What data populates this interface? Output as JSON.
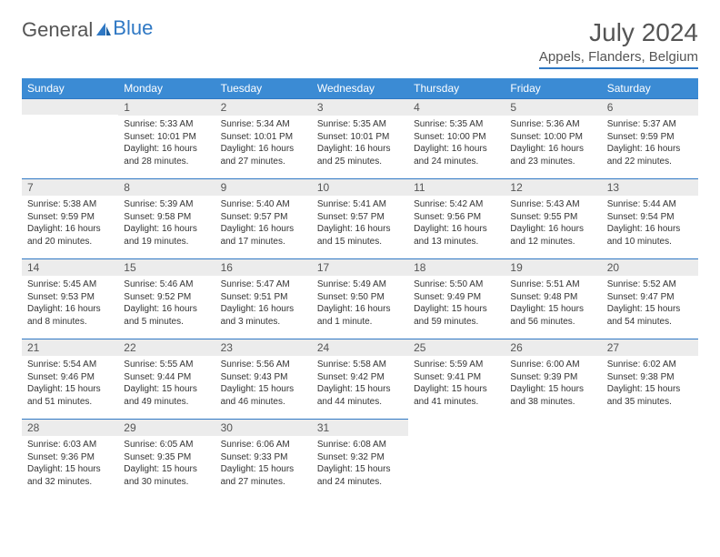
{
  "brand": {
    "part1": "General",
    "part2": "Blue"
  },
  "title": "July 2024",
  "location": "Appels, Flanders, Belgium",
  "colors": {
    "accent": "#3b8bd4",
    "rule": "#2f78c4",
    "daybg": "#ececec"
  },
  "weekdays": [
    "Sunday",
    "Monday",
    "Tuesday",
    "Wednesday",
    "Thursday",
    "Friday",
    "Saturday"
  ],
  "start_offset": 1,
  "days": [
    {
      "n": 1,
      "sr": "5:33 AM",
      "ss": "10:01 PM",
      "dl": "16 hours and 28 minutes."
    },
    {
      "n": 2,
      "sr": "5:34 AM",
      "ss": "10:01 PM",
      "dl": "16 hours and 27 minutes."
    },
    {
      "n": 3,
      "sr": "5:35 AM",
      "ss": "10:01 PM",
      "dl": "16 hours and 25 minutes."
    },
    {
      "n": 4,
      "sr": "5:35 AM",
      "ss": "10:00 PM",
      "dl": "16 hours and 24 minutes."
    },
    {
      "n": 5,
      "sr": "5:36 AM",
      "ss": "10:00 PM",
      "dl": "16 hours and 23 minutes."
    },
    {
      "n": 6,
      "sr": "5:37 AM",
      "ss": "9:59 PM",
      "dl": "16 hours and 22 minutes."
    },
    {
      "n": 7,
      "sr": "5:38 AM",
      "ss": "9:59 PM",
      "dl": "16 hours and 20 minutes."
    },
    {
      "n": 8,
      "sr": "5:39 AM",
      "ss": "9:58 PM",
      "dl": "16 hours and 19 minutes."
    },
    {
      "n": 9,
      "sr": "5:40 AM",
      "ss": "9:57 PM",
      "dl": "16 hours and 17 minutes."
    },
    {
      "n": 10,
      "sr": "5:41 AM",
      "ss": "9:57 PM",
      "dl": "16 hours and 15 minutes."
    },
    {
      "n": 11,
      "sr": "5:42 AM",
      "ss": "9:56 PM",
      "dl": "16 hours and 13 minutes."
    },
    {
      "n": 12,
      "sr": "5:43 AM",
      "ss": "9:55 PM",
      "dl": "16 hours and 12 minutes."
    },
    {
      "n": 13,
      "sr": "5:44 AM",
      "ss": "9:54 PM",
      "dl": "16 hours and 10 minutes."
    },
    {
      "n": 14,
      "sr": "5:45 AM",
      "ss": "9:53 PM",
      "dl": "16 hours and 8 minutes."
    },
    {
      "n": 15,
      "sr": "5:46 AM",
      "ss": "9:52 PM",
      "dl": "16 hours and 5 minutes."
    },
    {
      "n": 16,
      "sr": "5:47 AM",
      "ss": "9:51 PM",
      "dl": "16 hours and 3 minutes."
    },
    {
      "n": 17,
      "sr": "5:49 AM",
      "ss": "9:50 PM",
      "dl": "16 hours and 1 minute."
    },
    {
      "n": 18,
      "sr": "5:50 AM",
      "ss": "9:49 PM",
      "dl": "15 hours and 59 minutes."
    },
    {
      "n": 19,
      "sr": "5:51 AM",
      "ss": "9:48 PM",
      "dl": "15 hours and 56 minutes."
    },
    {
      "n": 20,
      "sr": "5:52 AM",
      "ss": "9:47 PM",
      "dl": "15 hours and 54 minutes."
    },
    {
      "n": 21,
      "sr": "5:54 AM",
      "ss": "9:46 PM",
      "dl": "15 hours and 51 minutes."
    },
    {
      "n": 22,
      "sr": "5:55 AM",
      "ss": "9:44 PM",
      "dl": "15 hours and 49 minutes."
    },
    {
      "n": 23,
      "sr": "5:56 AM",
      "ss": "9:43 PM",
      "dl": "15 hours and 46 minutes."
    },
    {
      "n": 24,
      "sr": "5:58 AM",
      "ss": "9:42 PM",
      "dl": "15 hours and 44 minutes."
    },
    {
      "n": 25,
      "sr": "5:59 AM",
      "ss": "9:41 PM",
      "dl": "15 hours and 41 minutes."
    },
    {
      "n": 26,
      "sr": "6:00 AM",
      "ss": "9:39 PM",
      "dl": "15 hours and 38 minutes."
    },
    {
      "n": 27,
      "sr": "6:02 AM",
      "ss": "9:38 PM",
      "dl": "15 hours and 35 minutes."
    },
    {
      "n": 28,
      "sr": "6:03 AM",
      "ss": "9:36 PM",
      "dl": "15 hours and 32 minutes."
    },
    {
      "n": 29,
      "sr": "6:05 AM",
      "ss": "9:35 PM",
      "dl": "15 hours and 30 minutes."
    },
    {
      "n": 30,
      "sr": "6:06 AM",
      "ss": "9:33 PM",
      "dl": "15 hours and 27 minutes."
    },
    {
      "n": 31,
      "sr": "6:08 AM",
      "ss": "9:32 PM",
      "dl": "15 hours and 24 minutes."
    }
  ],
  "labels": {
    "sunrise": "Sunrise:",
    "sunset": "Sunset:",
    "daylight": "Daylight:"
  }
}
